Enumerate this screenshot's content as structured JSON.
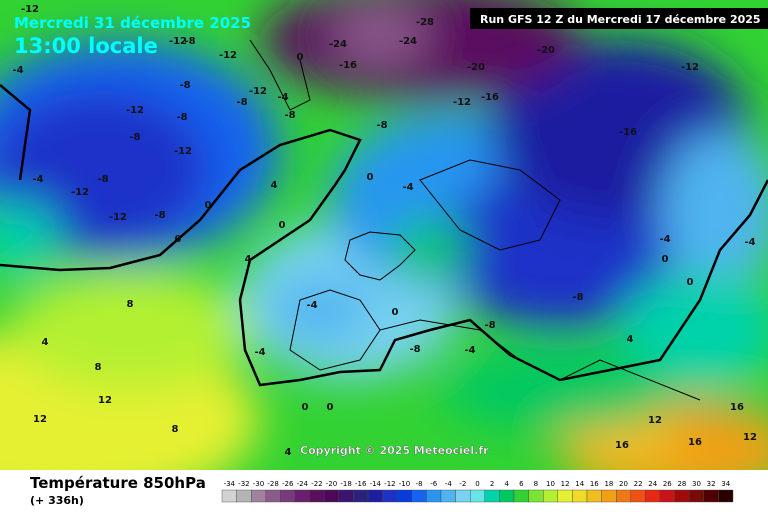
{
  "header": {
    "date": "Mercredi 31 décembre 2025",
    "time": "13:00 locale",
    "run": "Run GFS 12 Z du Mercredi 17 décembre 2025"
  },
  "footer": {
    "title": "Température 850hPa",
    "lead": "(+ 336h)",
    "copyright": "Copyright © 2025 Meteociel.fr"
  },
  "scale": {
    "values": [
      -34,
      -32,
      -30,
      -28,
      -26,
      -24,
      -22,
      -20,
      -18,
      -16,
      -14,
      -12,
      -10,
      -8,
      -6,
      -4,
      -2,
      0,
      2,
      4,
      6,
      8,
      10,
      12,
      14,
      16,
      18,
      20,
      22,
      24,
      26,
      28,
      30,
      32,
      34
    ],
    "colors": [
      "#d2d2d2",
      "#b4b4b4",
      "#a082a0",
      "#8c5a8c",
      "#7a3a7e",
      "#6a1e6e",
      "#5a0f5e",
      "#4b0a55",
      "#3c1470",
      "#28237d",
      "#1e1ea0",
      "#1e32c8",
      "#0a3cdc",
      "#1464f0",
      "#2896f0",
      "#50b4f0",
      "#78d2f0",
      "#64e6e6",
      "#00d2aa",
      "#00c864",
      "#32d232",
      "#78e632",
      "#b4f032",
      "#e6f032",
      "#f0dc28",
      "#f0be1e",
      "#f0a014",
      "#f07814",
      "#f05014",
      "#e62814",
      "#c81414",
      "#a00a0a",
      "#780a0a",
      "#500000",
      "#280000"
    ]
  },
  "map_labels": [
    "-12",
    "-12",
    "-8",
    "-12",
    "-4",
    "-8",
    "-12",
    "-8",
    "-8",
    "-12",
    "-12",
    "-8",
    "-4",
    "-8",
    "-12",
    "-8",
    "-12",
    "-4",
    "-8",
    "0",
    "0",
    "0",
    "4",
    "4",
    "0",
    "0",
    "-4",
    "-24",
    "-28",
    "-24",
    "-20",
    "-16",
    "-20",
    "-12",
    "-16",
    "-12",
    "-16",
    "-8",
    "-4",
    "0",
    "-8",
    "-8",
    "-4",
    "-8",
    "-4",
    "0",
    "-4",
    "0",
    "4",
    "8",
    "8",
    "12",
    "12",
    "12",
    "16",
    "16",
    "12",
    "16",
    "4",
    "0",
    "0",
    "-4",
    "4",
    "8"
  ]
}
